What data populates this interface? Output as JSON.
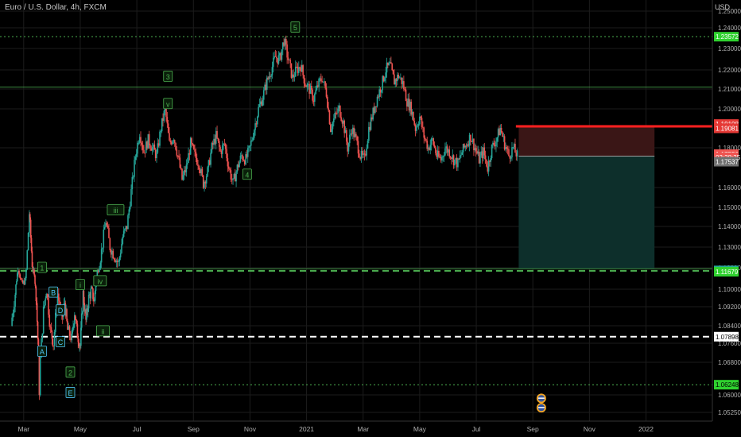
{
  "header": {
    "title": "Euro / U.S. Dollar, 4h, FXCM",
    "currency": "USD"
  },
  "chart_data": {
    "type": "candlestick",
    "title": "Euro / U.S. Dollar, 4h, FXCM",
    "ylim": [
      1.05,
      1.25
    ],
    "y_ticks": [
      {
        "v": 1.25,
        "label": "1.25000"
      },
      {
        "v": 1.24,
        "label": "1.24000"
      },
      {
        "v": 1.23,
        "label": "1.23000"
      },
      {
        "v": 1.22,
        "label": "1.22000"
      },
      {
        "v": 1.21,
        "label": "1.21000"
      },
      {
        "v": 1.2,
        "label": "1.20000"
      },
      {
        "v": 1.18,
        "label": "1.18000"
      },
      {
        "v": 1.16,
        "label": "1.16000"
      },
      {
        "v": 1.15,
        "label": "1.15000"
      },
      {
        "v": 1.14,
        "label": "1.14000"
      },
      {
        "v": 1.13,
        "label": "1.13000"
      },
      {
        "v": 1.12,
        "label": "1.12000"
      },
      {
        "v": 1.1,
        "label": "1.10000"
      },
      {
        "v": 1.092,
        "label": "1.09200"
      },
      {
        "v": 1.084,
        "label": "1.08400"
      },
      {
        "v": 1.076,
        "label": "1.07600"
      },
      {
        "v": 1.068,
        "label": "1.06800"
      },
      {
        "v": 1.06,
        "label": "1.06000"
      },
      {
        "v": 1.0525,
        "label": "1.05250"
      }
    ],
    "x_ticks": [
      {
        "x": 1.5,
        "label": "Mar"
      },
      {
        "x": 3.5,
        "label": "May"
      },
      {
        "x": 5.5,
        "label": "Jul"
      },
      {
        "x": 7.5,
        "label": "Sep"
      },
      {
        "x": 9.5,
        "label": "Nov"
      },
      {
        "x": 11.5,
        "label": "2021"
      },
      {
        "x": 13.5,
        "label": "Mar"
      },
      {
        "x": 15.5,
        "label": "May"
      },
      {
        "x": 17.5,
        "label": "Jul"
      },
      {
        "x": 19.5,
        "label": "Sep"
      },
      {
        "x": 21.5,
        "label": "Nov"
      },
      {
        "x": 23.5,
        "label": "2022"
      }
    ],
    "xlim": [
      1.0,
      25.0
    ],
    "price_path": [
      [
        1.05,
        1.084
      ],
      [
        1.2,
        1.098
      ],
      [
        1.3,
        1.12
      ],
      [
        1.45,
        1.104
      ],
      [
        1.55,
        1.108
      ],
      [
        1.7,
        1.147
      ],
      [
        1.8,
        1.122
      ],
      [
        1.9,
        1.108
      ],
      [
        1.95,
        1.094
      ],
      [
        2.05,
        1.062
      ],
      [
        2.2,
        1.09
      ],
      [
        2.3,
        1.1
      ],
      [
        2.45,
        1.082
      ],
      [
        2.55,
        1.076
      ],
      [
        2.7,
        1.098
      ],
      [
        2.85,
        1.086
      ],
      [
        2.95,
        1.094
      ],
      [
        3.05,
        1.082
      ],
      [
        3.2,
        1.078
      ],
      [
        3.3,
        1.09
      ],
      [
        3.4,
        1.08
      ],
      [
        3.5,
        1.075
      ],
      [
        3.6,
        1.098
      ],
      [
        3.7,
        1.086
      ],
      [
        3.8,
        1.096
      ],
      [
        3.9,
        1.1
      ],
      [
        4.0,
        1.094
      ],
      [
        4.1,
        1.116
      ],
      [
        4.25,
        1.128
      ],
      [
        4.4,
        1.143
      ],
      [
        4.55,
        1.13
      ],
      [
        4.7,
        1.126
      ],
      [
        4.85,
        1.122
      ],
      [
        5.0,
        1.135
      ],
      [
        5.15,
        1.14
      ],
      [
        5.3,
        1.158
      ],
      [
        5.45,
        1.176
      ],
      [
        5.6,
        1.188
      ],
      [
        5.75,
        1.178
      ],
      [
        5.9,
        1.184
      ],
      [
        6.05,
        1.18
      ],
      [
        6.2,
        1.176
      ],
      [
        6.35,
        1.19
      ],
      [
        6.5,
        1.2
      ],
      [
        6.65,
        1.182
      ],
      [
        6.8,
        1.186
      ],
      [
        6.95,
        1.176
      ],
      [
        7.1,
        1.164
      ],
      [
        7.25,
        1.17
      ],
      [
        7.4,
        1.182
      ],
      [
        7.55,
        1.176
      ],
      [
        7.7,
        1.172
      ],
      [
        7.85,
        1.162
      ],
      [
        8.0,
        1.168
      ],
      [
        8.15,
        1.18
      ],
      [
        8.3,
        1.186
      ],
      [
        8.45,
        1.178
      ],
      [
        8.6,
        1.182
      ],
      [
        8.75,
        1.17
      ],
      [
        8.9,
        1.162
      ],
      [
        9.05,
        1.17
      ],
      [
        9.2,
        1.176
      ],
      [
        9.35,
        1.174
      ],
      [
        9.5,
        1.18
      ],
      [
        9.65,
        1.19
      ],
      [
        9.8,
        1.2
      ],
      [
        9.95,
        1.206
      ],
      [
        10.1,
        1.214
      ],
      [
        10.25,
        1.22
      ],
      [
        10.4,
        1.226
      ],
      [
        10.55,
        1.225
      ],
      [
        10.7,
        1.234
      ],
      [
        10.85,
        1.225
      ],
      [
        11.0,
        1.216
      ],
      [
        11.15,
        1.22
      ],
      [
        11.3,
        1.222
      ],
      [
        11.45,
        1.213
      ],
      [
        11.6,
        1.21
      ],
      [
        11.75,
        1.205
      ],
      [
        11.9,
        1.212
      ],
      [
        12.05,
        1.216
      ],
      [
        12.2,
        1.208
      ],
      [
        12.35,
        1.19
      ],
      [
        12.5,
        1.196
      ],
      [
        12.65,
        1.2
      ],
      [
        12.8,
        1.193
      ],
      [
        12.95,
        1.18
      ],
      [
        13.1,
        1.19
      ],
      [
        13.25,
        1.184
      ],
      [
        13.4,
        1.176
      ],
      [
        13.55,
        1.174
      ],
      [
        13.7,
        1.19
      ],
      [
        13.85,
        1.198
      ],
      [
        14.0,
        1.206
      ],
      [
        14.15,
        1.212
      ],
      [
        14.3,
        1.22
      ],
      [
        14.45,
        1.222
      ],
      [
        14.6,
        1.214
      ],
      [
        14.75,
        1.217
      ],
      [
        14.9,
        1.213
      ],
      [
        15.05,
        1.204
      ],
      [
        15.2,
        1.2
      ],
      [
        15.35,
        1.19
      ],
      [
        15.5,
        1.196
      ],
      [
        15.65,
        1.186
      ],
      [
        15.8,
        1.18
      ],
      [
        15.95,
        1.184
      ],
      [
        16.1,
        1.176
      ],
      [
        16.25,
        1.174
      ],
      [
        16.4,
        1.18
      ],
      [
        16.55,
        1.178
      ],
      [
        16.7,
        1.174
      ],
      [
        16.85,
        1.172
      ],
      [
        17.0,
        1.178
      ],
      [
        17.15,
        1.182
      ],
      [
        17.3,
        1.186
      ],
      [
        17.45,
        1.18
      ],
      [
        17.6,
        1.174
      ],
      [
        17.75,
        1.178
      ],
      [
        17.9,
        1.17
      ],
      [
        18.05,
        1.18
      ],
      [
        18.2,
        1.184
      ],
      [
        18.35,
        1.19
      ],
      [
        18.5,
        1.182
      ],
      [
        18.65,
        1.176
      ],
      [
        18.8,
        1.18
      ],
      [
        18.95,
        1.176
      ]
    ],
    "zigzag_points": [
      [
        1.65,
        1.149
      ],
      [
        2.05,
        1.061
      ],
      [
        3.9,
        1.12
      ],
      [
        4.7,
        1.123
      ],
      [
        5.2,
        1.14
      ],
      [
        5.6,
        1.185
      ],
      [
        6.55,
        1.2
      ],
      [
        7.5,
        1.168
      ],
      [
        8.6,
        1.186
      ],
      [
        9.3,
        1.164
      ],
      [
        10.7,
        1.234
      ],
      [
        11.5,
        1.209
      ],
      [
        12.2,
        1.22
      ],
      [
        12.6,
        1.19
      ],
      [
        13.45,
        1.173
      ],
      [
        14.5,
        1.226
      ],
      [
        15.2,
        1.2
      ],
      [
        16.3,
        1.186
      ],
      [
        17.0,
        1.172
      ],
      [
        18.3,
        1.19
      ],
      [
        18.95,
        1.176
      ]
    ],
    "horizontal_lines": [
      {
        "y": 1.2357,
        "style": "dotted",
        "color": "#4caf50"
      },
      {
        "y": 1.211,
        "style": "solid",
        "color": "#4caf50"
      },
      {
        "y": 1.1191,
        "style": "solid",
        "color": "#4caf50"
      },
      {
        "y": 1.1171,
        "style": "dashed",
        "color": "#4caf50"
      },
      {
        "y": 1.079,
        "style": "dashed",
        "color": "#ffffff"
      },
      {
        "y": 1.0625,
        "style": "dotted",
        "color": "#4caf50"
      }
    ],
    "position_tool": {
      "x_start": 19.0,
      "x_end": 23.8,
      "stop": 1.191,
      "entry": 1.1758,
      "target": 1.1191,
      "stop_color": "#ff2020",
      "loss_fill": "#3a1616",
      "profit_fill": "#0d2f2b"
    },
    "stop_line": {
      "x_start": 18.9,
      "y": 1.191,
      "color": "#ff2020"
    },
    "wave_labels": [
      {
        "text": "5",
        "x": 11.1,
        "y": 1.2402,
        "color": "#4caf50"
      },
      {
        "text": "3",
        "x": 6.6,
        "y": 1.2165,
        "color": "#4caf50"
      },
      {
        "text": "v",
        "x": 6.6,
        "y": 1.2025,
        "color": "#4caf50"
      },
      {
        "text": "4",
        "x": 9.4,
        "y": 1.1665,
        "color": "#4caf50"
      },
      {
        "text": "iii",
        "x": 4.75,
        "y": 1.1485,
        "color": "#4caf50"
      },
      {
        "text": "1",
        "x": 2.15,
        "y": 1.12,
        "color": "#4caf50"
      },
      {
        "text": "iv",
        "x": 4.2,
        "y": 1.1075,
        "color": "#4caf50"
      },
      {
        "text": "i",
        "x": 3.5,
        "y": 1.104,
        "color": "#4caf50"
      },
      {
        "text": "ii",
        "x": 4.3,
        "y": 1.0815,
        "color": "#4caf50"
      },
      {
        "text": "2",
        "x": 3.15,
        "y": 1.0655,
        "color": "#4caf50"
      },
      {
        "text": "B",
        "x": 2.55,
        "y": 1.0985,
        "color": "#4fc3f7"
      },
      {
        "text": "D",
        "x": 2.8,
        "y": 1.0905,
        "color": "#4fc3f7"
      },
      {
        "text": "C",
        "x": 2.8,
        "y": 1.0765,
        "color": "#4fc3f7"
      },
      {
        "text": "A",
        "x": 2.15,
        "y": 1.0725,
        "color": "#4fc3f7"
      },
      {
        "text": "E",
        "x": 3.15,
        "y": 1.0605,
        "color": "#4fc3f7"
      }
    ],
    "price_badges": [
      {
        "y": 1.2357,
        "label": "1.23572",
        "bg": "#2fd12f",
        "fg": "#ffffff"
      },
      {
        "y": 1.1922,
        "label": "1.19108",
        "bg": "#e53935",
        "fg": "#ffffff"
      },
      {
        "y": 1.19,
        "label": "1.19081",
        "bg": "#e53935",
        "fg": "#ffffff"
      },
      {
        "y": 1.1768,
        "label": "1.17550",
        "bg": "#ef5350",
        "fg": "#ffffff"
      },
      {
        "y": 1.1752,
        "label": "03:38:35",
        "bg": "#ef5350",
        "fg": "#ffffff"
      },
      {
        "y": 1.173,
        "label": "1.17537",
        "bg": "#707070",
        "fg": "#ffffff"
      },
      {
        "y": 1.1175,
        "label": "1.11709",
        "bg": "#26a69a",
        "fg": "#ffffff"
      },
      {
        "y": 1.1163,
        "label": "1.11679",
        "bg": "#2fd12f",
        "fg": "#ffffff"
      },
      {
        "y": 1.079,
        "label": "1.07898",
        "bg": "#ffffff",
        "fg": "#000000"
      },
      {
        "y": 1.0625,
        "label": "1.06248",
        "bg": "#2fd12f",
        "fg": "#000000"
      }
    ],
    "event_icons": [
      {
        "x": 19.8,
        "y": 1.0585,
        "name": "us-flag-event-icon"
      },
      {
        "x": 19.8,
        "y": 1.0545,
        "name": "eu-flag-event-icon"
      }
    ],
    "grid": true,
    "up_color": "#26a69a",
    "down_color": "#ef5350"
  }
}
